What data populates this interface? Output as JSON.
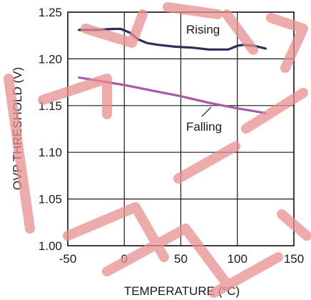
{
  "watermark": {
    "colors": {
      "stroke": "#e88f8f"
    }
  },
  "chart_data": {
    "type": "line",
    "title": "",
    "xlabel": "TEMPERATURE (°C)",
    "ylabel": "OVP THRESHOLD (V)",
    "xlim": [
      -50,
      150
    ],
    "ylim": [
      1.0,
      1.25
    ],
    "x_ticks": [
      "-50",
      "0",
      "50",
      "100",
      "150"
    ],
    "y_ticks": [
      "1.00",
      "1.05",
      "1.10",
      "1.15",
      "1.20",
      "1.25"
    ],
    "grid": true,
    "series": [
      {
        "name": "Rising",
        "color": "#2b2d5c",
        "points": [
          [
            -40,
            1.231
          ],
          [
            -25,
            1.231
          ],
          [
            -10,
            1.232
          ],
          [
            -3,
            1.232
          ],
          [
            5,
            1.228
          ],
          [
            12,
            1.221
          ],
          [
            20,
            1.217
          ],
          [
            30,
            1.215
          ],
          [
            45,
            1.213
          ],
          [
            60,
            1.212
          ],
          [
            75,
            1.21
          ],
          [
            85,
            1.21
          ],
          [
            92,
            1.21
          ],
          [
            100,
            1.214
          ],
          [
            105,
            1.215
          ],
          [
            115,
            1.214
          ],
          [
            125,
            1.211
          ]
        ]
      },
      {
        "name": "Falling",
        "color": "#a85aa8",
        "points": [
          [
            -40,
            1.18
          ],
          [
            -20,
            1.176
          ],
          [
            0,
            1.172
          ],
          [
            25,
            1.166
          ],
          [
            50,
            1.16
          ],
          [
            75,
            1.153
          ],
          [
            100,
            1.147
          ],
          [
            125,
            1.142
          ]
        ]
      }
    ]
  }
}
